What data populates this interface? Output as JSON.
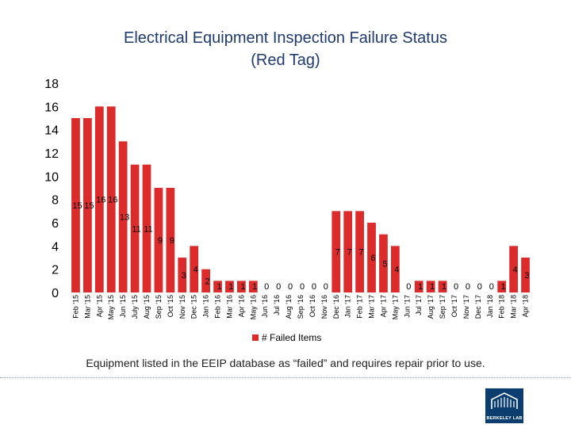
{
  "chart_data": {
    "type": "bar",
    "title": "Electrical Equipment Inspection Failure Status\n(Red Tag)",
    "categories": [
      "Feb '15",
      "Mar '15",
      "Apr '15",
      "May '15",
      "Jun '15",
      "July '15",
      "Aug '15",
      "Sep '15",
      "Oct '15",
      "Nov '15",
      "Dec '15",
      "Jan '16",
      "Feb '16",
      "Mar '16",
      "Apr '16",
      "May '16",
      "Jun '16",
      "Jul '16",
      "Aug '16",
      "Sep '16",
      "Oct '16",
      "Nov '16",
      "Dec '16",
      "Jan '17",
      "Feb '17",
      "Mar '17",
      "Apr '17",
      "May '17",
      "Jun '17",
      "Jul '17",
      "Aug '17",
      "Sep '17",
      "Oct '17",
      "Nov '17",
      "Dec '17",
      "Jan '18",
      "Feb '18",
      "Mar '18",
      "Apr '18"
    ],
    "series": [
      {
        "name": "# Failed Items",
        "color": "#dc2b2b",
        "values": [
          15,
          15,
          16,
          16,
          13,
          11,
          11,
          9,
          9,
          3,
          4,
          2,
          1,
          1,
          1,
          1,
          0,
          0,
          0,
          0,
          0,
          0,
          7,
          7,
          7,
          6,
          5,
          4,
          0,
          1,
          1,
          1,
          0,
          0,
          0,
          0,
          1,
          4,
          3
        ]
      }
    ],
    "ylim": [
      0,
      18
    ],
    "yticks": [
      0,
      2,
      4,
      6,
      8,
      10,
      12,
      14,
      16,
      18
    ],
    "grid": false,
    "legend": "bottom"
  },
  "caption": "Equipment listed in the EEIP database as “failed” and requires repair prior to use.",
  "logo_text": "BERKELEY LAB"
}
